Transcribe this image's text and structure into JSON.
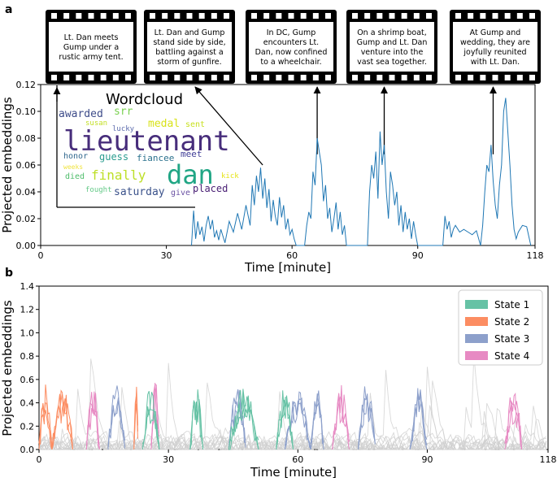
{
  "panels": {
    "a": "a",
    "b": "b"
  },
  "colors": {
    "line_a": "#1f77b4",
    "gray": "#cfcfcf",
    "state1": "#66c2a5",
    "state2": "#fc8d62",
    "state3": "#8da0cb",
    "state4": "#e78ac3"
  },
  "filmstrips": [
    {
      "caption": [
        "Lt. Dan meets",
        "Gump under a",
        "rustic army tent."
      ],
      "points_to": 5
    },
    {
      "caption": [
        "Lt. Dan and Gump",
        "stand side by side,",
        "battling against a",
        "storm of gunfire."
      ],
      "points_to": 53
    },
    {
      "caption": [
        "In DC, Gump",
        "encounters Lt.",
        "Dan, now confined",
        "to a wheelchair."
      ],
      "points_to": 66
    },
    {
      "caption": [
        "On a shrimp boat,",
        "Gump and Lt. Dan",
        "venture into the",
        "vast sea together."
      ],
      "points_to": 82
    },
    {
      "caption": [
        "At Gump and",
        "wedding, they are",
        "joyfully reunited",
        "with Lt. Dan."
      ],
      "points_to": 108
    }
  ],
  "wordcloud": {
    "title": "Wordcloud",
    "words": [
      {
        "text": "lieutenant",
        "size": 34,
        "color": "#472d7b"
      },
      {
        "text": "dan",
        "size": 32,
        "color": "#21a685"
      },
      {
        "text": "finally",
        "size": 16,
        "color": "#bddf26"
      },
      {
        "text": "saturday",
        "size": 13,
        "color": "#3b528b"
      },
      {
        "text": "awarded",
        "size": 13,
        "color": "#3e4c8a"
      },
      {
        "text": "srr",
        "size": 13,
        "color": "#7ad151"
      },
      {
        "text": "medal",
        "size": 13,
        "color": "#d8e219"
      },
      {
        "text": "susan",
        "size": 9,
        "color": "#c2df23"
      },
      {
        "text": "lucky",
        "size": 9,
        "color": "#5c6bad"
      },
      {
        "text": "sent",
        "size": 10,
        "color": "#c8e020"
      },
      {
        "text": "honor",
        "size": 10,
        "color": "#31688e"
      },
      {
        "text": "guess",
        "size": 12,
        "color": "#2a9d8f"
      },
      {
        "text": "fiancee",
        "size": 11,
        "color": "#2c728e"
      },
      {
        "text": "meet",
        "size": 11,
        "color": "#3f3d96"
      },
      {
        "text": "weeks",
        "size": 8,
        "color": "#f0e442"
      },
      {
        "text": "died",
        "size": 10,
        "color": "#4dbd6a"
      },
      {
        "text": "kick",
        "size": 9,
        "color": "#e5e419"
      },
      {
        "text": "fought",
        "size": 9,
        "color": "#64c987"
      },
      {
        "text": "give",
        "size": 10,
        "color": "#6a51a3"
      },
      {
        "text": "placed",
        "size": 12,
        "color": "#4a2075"
      }
    ]
  },
  "chart_data": [
    {
      "type": "line",
      "panel": "a",
      "xlabel": "Time [minute]",
      "ylabel": "Projected embeddings",
      "xlim": [
        0,
        118
      ],
      "ylim": [
        0,
        0.12
      ],
      "xticks": [
        0,
        30,
        60,
        90,
        118
      ],
      "yticks": [
        "0.00",
        "0.02",
        "0.04",
        "0.06",
        "0.08",
        "0.10",
        "0.12"
      ],
      "segments": [
        {
          "x": [
            36,
            36.5,
            37,
            37.5,
            38,
            38.5,
            39,
            39.5,
            40,
            40.5,
            41,
            41.5,
            42,
            42.5,
            43,
            43.5,
            44
          ],
          "y": [
            0.0,
            0.026,
            0.005,
            0.018,
            0.008,
            0.014,
            0.003,
            0.015,
            0.022,
            0.012,
            0.019,
            0.006,
            0.011,
            0.004,
            0.012,
            0.007,
            0.002
          ]
        },
        {
          "x": [
            44,
            45,
            46,
            47,
            48,
            49,
            50
          ],
          "y": [
            0.002,
            0.018,
            0.01,
            0.024,
            0.012,
            0.03,
            0.015
          ]
        },
        {
          "x": [
            50,
            50.5,
            51,
            51.5,
            52,
            52.5,
            53,
            53.5,
            54,
            54.5,
            55,
            55.5,
            56,
            56.5,
            57,
            57.5,
            58,
            58.5,
            59,
            59.5,
            60,
            60.5,
            61
          ],
          "y": [
            0.015,
            0.045,
            0.03,
            0.052,
            0.04,
            0.058,
            0.035,
            0.05,
            0.028,
            0.042,
            0.018,
            0.034,
            0.022,
            0.015,
            0.036,
            0.021,
            0.03,
            0.012,
            0.02,
            0.008,
            0.012,
            0.005,
            0.0
          ]
        },
        {
          "x": [
            63,
            63.5,
            64,
            64.5,
            65,
            65.5,
            66,
            66.5,
            67,
            67.5,
            68,
            68.5,
            69,
            69.5,
            70,
            70.5,
            71,
            71.5,
            72,
            72.5,
            73
          ],
          "y": [
            0.0,
            0.015,
            0.025,
            0.02,
            0.055,
            0.045,
            0.08,
            0.07,
            0.06,
            0.033,
            0.045,
            0.02,
            0.028,
            0.01,
            0.02,
            0.032,
            0.012,
            0.025,
            0.008,
            0.015,
            0.0
          ]
        },
        {
          "x": [
            78,
            78.5,
            79,
            79.5,
            80,
            80.5,
            81,
            81.5,
            82,
            82.5,
            83,
            83.5,
            84,
            84.5,
            85,
            85.5,
            86,
            86.5,
            87,
            87.5,
            88,
            88.5,
            89,
            89.5,
            90
          ],
          "y": [
            0.0,
            0.04,
            0.06,
            0.05,
            0.07,
            0.035,
            0.085,
            0.06,
            0.075,
            0.04,
            0.02,
            0.055,
            0.045,
            0.03,
            0.04,
            0.015,
            0.03,
            0.01,
            0.025,
            0.012,
            0.02,
            0.005,
            0.018,
            0.008,
            0.0
          ]
        },
        {
          "x": [
            96,
            96.5,
            97,
            97.5,
            98,
            98.5,
            99,
            100,
            101,
            102,
            103,
            104,
            105
          ],
          "y": [
            0.0,
            0.022,
            0.012,
            0.018,
            0.006,
            0.012,
            0.015,
            0.01,
            0.012,
            0.01,
            0.008,
            0.011,
            0.0
          ]
        },
        {
          "x": [
            105,
            105.5,
            106,
            106.5,
            107,
            107.5,
            108,
            108.5,
            109,
            109.5,
            110,
            110.5,
            111,
            111.5,
            112,
            112.5,
            113,
            113.5,
            114,
            115,
            116,
            117
          ],
          "y": [
            0.0,
            0.015,
            0.04,
            0.06,
            0.055,
            0.075,
            0.048,
            0.03,
            0.02,
            0.045,
            0.06,
            0.1,
            0.11,
            0.085,
            0.06,
            0.03,
            0.012,
            0.005,
            0.01,
            0.015,
            0.014,
            0.0
          ]
        }
      ]
    },
    {
      "type": "line",
      "panel": "b",
      "xlabel": "Time [minute]",
      "ylabel": "Projected embeddings",
      "xlim": [
        0,
        118
      ],
      "ylim": [
        0,
        1.4
      ],
      "xticks": [
        0,
        30,
        60,
        90,
        118
      ],
      "yticks": [
        "0.0",
        "0.2",
        "0.4",
        "0.6",
        "0.8",
        "1.0",
        "1.2",
        "1.4"
      ],
      "legend": {
        "placement": "top-right",
        "entries": [
          "State 1",
          "State 2",
          "State 3",
          "State 4"
        ]
      },
      "state_bursts": [
        {
          "state": 2,
          "intervals": [
            [
              0,
              3
            ],
            [
              3,
              8
            ],
            [
              22,
              23
            ]
          ]
        },
        {
          "state": 4,
          "intervals": [
            [
              11,
              14
            ],
            [
              26,
              28
            ],
            [
              68,
              72
            ],
            [
              108,
              112
            ]
          ]
        },
        {
          "state": 3,
          "intervals": [
            [
              16,
              20
            ],
            [
              44,
              48
            ],
            [
              57,
              63
            ],
            [
              63,
              66
            ],
            [
              74,
              78
            ],
            [
              86,
              90
            ]
          ]
        },
        {
          "state": 1,
          "intervals": [
            [
              24,
              28
            ],
            [
              35,
              38
            ],
            [
              44,
              51
            ],
            [
              55,
              59
            ]
          ]
        }
      ]
    }
  ]
}
